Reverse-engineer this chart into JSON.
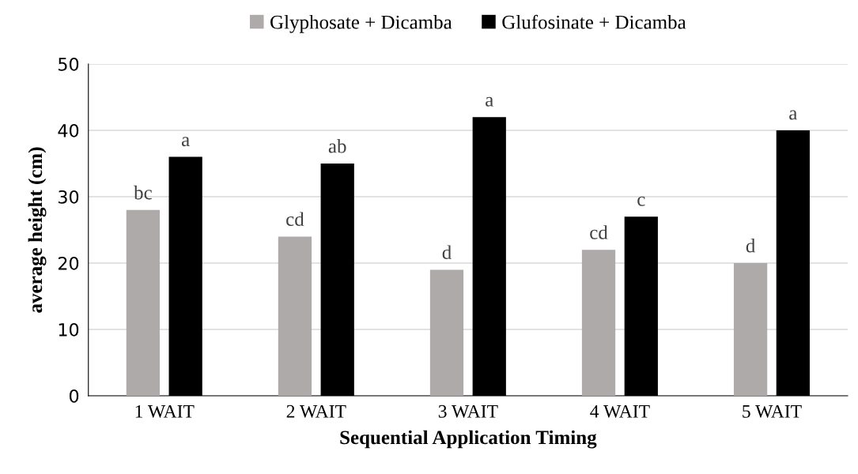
{
  "chart_data": {
    "type": "bar",
    "xlabel": "Sequential Application Timing",
    "ylabel": "average height (cm)",
    "categories": [
      "1 WAIT",
      "2 WAIT",
      "3 WAIT",
      "4 WAIT",
      "5 WAIT"
    ],
    "series": [
      {
        "name": "Glyphosate + Dicamba",
        "color": "#aeaaaa",
        "values": [
          28,
          24,
          19,
          22,
          20
        ],
        "value_labels": [
          "bc",
          "cd",
          "d",
          "cd",
          "d"
        ]
      },
      {
        "name": "Glufosinate + Dicamba",
        "color": "#000000",
        "values": [
          36,
          35,
          42,
          27,
          40
        ],
        "value_labels": [
          "a",
          "ab",
          "a",
          "c",
          "a"
        ]
      }
    ],
    "ylim": [
      0,
      50
    ],
    "yticks": [
      0,
      10,
      20,
      30,
      40,
      50
    ],
    "grid": "y",
    "legend": "top"
  }
}
